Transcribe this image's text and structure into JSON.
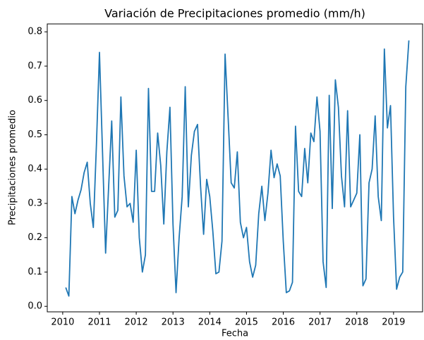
{
  "chart_data": {
    "type": "line",
    "title": "Variación de Precipitaciones promedio (mm/h)",
    "xlabel": "Fecha",
    "ylabel": "Precipitaciones promedio",
    "x": [
      2010.083,
      2010.167,
      2010.25,
      2010.333,
      2010.417,
      2010.5,
      2010.583,
      2010.667,
      2010.75,
      2010.833,
      2010.917,
      2011,
      2011.083,
      2011.167,
      2011.25,
      2011.333,
      2011.417,
      2011.5,
      2011.583,
      2011.667,
      2011.75,
      2011.833,
      2011.917,
      2012,
      2012.083,
      2012.167,
      2012.25,
      2012.333,
      2012.417,
      2012.5,
      2012.583,
      2012.667,
      2012.75,
      2012.833,
      2012.917,
      2013,
      2013.083,
      2013.167,
      2013.25,
      2013.333,
      2013.417,
      2013.5,
      2013.583,
      2013.667,
      2013.75,
      2013.833,
      2013.917,
      2014,
      2014.083,
      2014.167,
      2014.25,
      2014.333,
      2014.417,
      2014.5,
      2014.583,
      2014.667,
      2014.75,
      2014.833,
      2014.917,
      2015,
      2015.083,
      2015.167,
      2015.25,
      2015.333,
      2015.417,
      2015.5,
      2015.583,
      2015.667,
      2015.75,
      2015.833,
      2015.917,
      2016,
      2016.083,
      2016.167,
      2016.25,
      2016.333,
      2016.417,
      2016.5,
      2016.583,
      2016.667,
      2016.75,
      2016.833,
      2016.917,
      2017,
      2017.083,
      2017.167,
      2017.25,
      2017.333,
      2017.417,
      2017.5,
      2017.583,
      2017.667,
      2017.75,
      2017.833,
      2017.917,
      2018,
      2018.083,
      2018.167,
      2018.25,
      2018.333,
      2018.417,
      2018.5,
      2018.583,
      2018.667,
      2018.75,
      2018.833,
      2018.917,
      2019,
      2019.083,
      2019.167,
      2019.25,
      2019.333,
      2019.417
    ],
    "series": [
      {
        "name": "Precipitaciones promedio",
        "color": "#1f77b4",
        "values": [
          0.055,
          0.03,
          0.32,
          0.27,
          0.31,
          0.34,
          0.39,
          0.42,
          0.3,
          0.23,
          0.47,
          0.74,
          0.45,
          0.155,
          0.35,
          0.54,
          0.26,
          0.28,
          0.61,
          0.38,
          0.29,
          0.3,
          0.245,
          0.455,
          0.2,
          0.1,
          0.15,
          0.635,
          0.335,
          0.335,
          0.505,
          0.41,
          0.24,
          0.45,
          0.58,
          0.24,
          0.04,
          0.2,
          0.32,
          0.64,
          0.29,
          0.44,
          0.51,
          0.53,
          0.35,
          0.21,
          0.37,
          0.32,
          0.22,
          0.095,
          0.1,
          0.19,
          0.735,
          0.55,
          0.36,
          0.345,
          0.45,
          0.245,
          0.2,
          0.23,
          0.13,
          0.085,
          0.12,
          0.27,
          0.35,
          0.25,
          0.33,
          0.455,
          0.375,
          0.415,
          0.38,
          0.19,
          0.04,
          0.045,
          0.07,
          0.525,
          0.335,
          0.32,
          0.46,
          0.36,
          0.505,
          0.48,
          0.61,
          0.51,
          0.13,
          0.055,
          0.615,
          0.285,
          0.66,
          0.58,
          0.38,
          0.29,
          0.57,
          0.29,
          0.31,
          0.33,
          0.5,
          0.06,
          0.08,
          0.36,
          0.4,
          0.555,
          0.32,
          0.25,
          0.75,
          0.52,
          0.585,
          0.26,
          0.05,
          0.085,
          0.1,
          0.64,
          0.775
        ]
      }
    ],
    "xlim": [
      2009.58,
      2019.79
    ],
    "xticks": [
      2010,
      2011,
      2012,
      2013,
      2014,
      2015,
      2016,
      2017,
      2018,
      2019
    ],
    "ylim": [
      -0.016,
      0.823
    ],
    "yticks": [
      {
        "value": 0,
        "label": "0.0"
      },
      {
        "value": 0.1,
        "label": "0.1"
      },
      {
        "value": 0.2,
        "label": "0.2"
      },
      {
        "value": 0.3,
        "label": "0.3"
      },
      {
        "value": 0.4,
        "label": "0.4"
      },
      {
        "value": 0.5,
        "label": "0.5"
      },
      {
        "value": 0.6,
        "label": "0.6"
      },
      {
        "value": 0.7,
        "label": "0.7"
      },
      {
        "value": 0.8,
        "label": "0.8"
      }
    ],
    "grid": false
  }
}
